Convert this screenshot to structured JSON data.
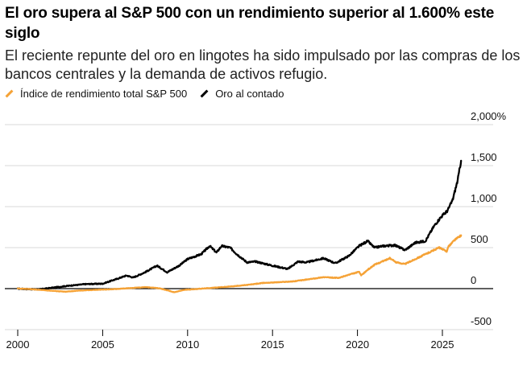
{
  "header": {
    "title": "El oro supera al S&P 500 con un rendimiento superior al 1.600% este siglo",
    "subtitle": "El reciente repunte del oro en lingotes ha sido impulsado por las compras de los bancos centrales y la demanda de activos refugio."
  },
  "legend": {
    "items": [
      {
        "label": "Índice de rendimiento total S&P 500",
        "color": "#f5a236"
      },
      {
        "label": "Oro al contado",
        "color": "#000000"
      }
    ]
  },
  "chart_data": {
    "type": "line",
    "title": "El oro supera al S&P 500 con un rendimiento superior al 1.600% este siglo",
    "xlabel": "",
    "ylabel": "",
    "xlim": [
      2000,
      2026.3
    ],
    "ylim": [
      -500,
      2000
    ],
    "x_ticks": [
      2000,
      2005,
      2010,
      2015,
      2020,
      2025
    ],
    "x_tick_labels": [
      "2000",
      "2005",
      "2010",
      "2015",
      "2020",
      "2025"
    ],
    "y_ticks": [
      2000,
      1500,
      1000,
      500,
      0,
      -500
    ],
    "y_tick_labels": [
      "2,000%",
      "1,500",
      "1,000",
      "500",
      "0",
      "-500"
    ],
    "series": [
      {
        "name": "Índice de rendimiento total S&P 500",
        "color": "#f5a236",
        "x": [
          2000,
          2000.7,
          2001.5,
          2002.3,
          2002.8,
          2003.5,
          2004.5,
          2005.5,
          2006.5,
          2007.5,
          2008.3,
          2008.9,
          2009.2,
          2009.8,
          2010.5,
          2011.5,
          2012.5,
          2013.5,
          2014.5,
          2015.5,
          2016.2,
          2017,
          2018,
          2018.9,
          2019.5,
          2020.1,
          2020.22,
          2020.6,
          2021,
          2021.9,
          2022.3,
          2022.8,
          2023.3,
          2024,
          2024.8,
          2025.25,
          2025.35,
          2025.7,
          2026.1
        ],
        "values": [
          0,
          -5,
          -18,
          -30,
          -38,
          -25,
          -15,
          -8,
          5,
          18,
          5,
          -25,
          -45,
          -15,
          -5,
          10,
          25,
          45,
          70,
          80,
          88,
          110,
          140,
          130,
          170,
          205,
          160,
          230,
          290,
          370,
          320,
          300,
          350,
          420,
          500,
          455,
          510,
          590,
          650
        ]
      },
      {
        "name": "Oro al contado",
        "color": "#000000",
        "x": [
          2000,
          2000.5,
          2001.2,
          2002,
          2003,
          2004,
          2005,
          2006,
          2006.4,
          2006.8,
          2007.5,
          2008.2,
          2008.8,
          2009.5,
          2010,
          2010.8,
          2011.3,
          2011.7,
          2012,
          2012.5,
          2012.9,
          2013.5,
          2014,
          2015,
          2015.9,
          2016.5,
          2017,
          2018,
          2018.7,
          2019.5,
          2020.1,
          2020.6,
          2021,
          2021.5,
          2022.2,
          2022.8,
          2023.4,
          2024,
          2024.5,
          2024.9,
          2025.3,
          2025.6,
          2025.9,
          2026.1
        ],
        "values": [
          0,
          -5,
          -10,
          10,
          35,
          55,
          60,
          130,
          160,
          135,
          200,
          280,
          200,
          280,
          360,
          420,
          520,
          440,
          520,
          500,
          420,
          320,
          330,
          280,
          240,
          330,
          320,
          370,
          310,
          400,
          520,
          580,
          500,
          520,
          530,
          470,
          560,
          580,
          760,
          870,
          950,
          1080,
          1320,
          1560
        ]
      }
    ],
    "grid": true,
    "zero_line": true,
    "legend_position": "top-left"
  }
}
